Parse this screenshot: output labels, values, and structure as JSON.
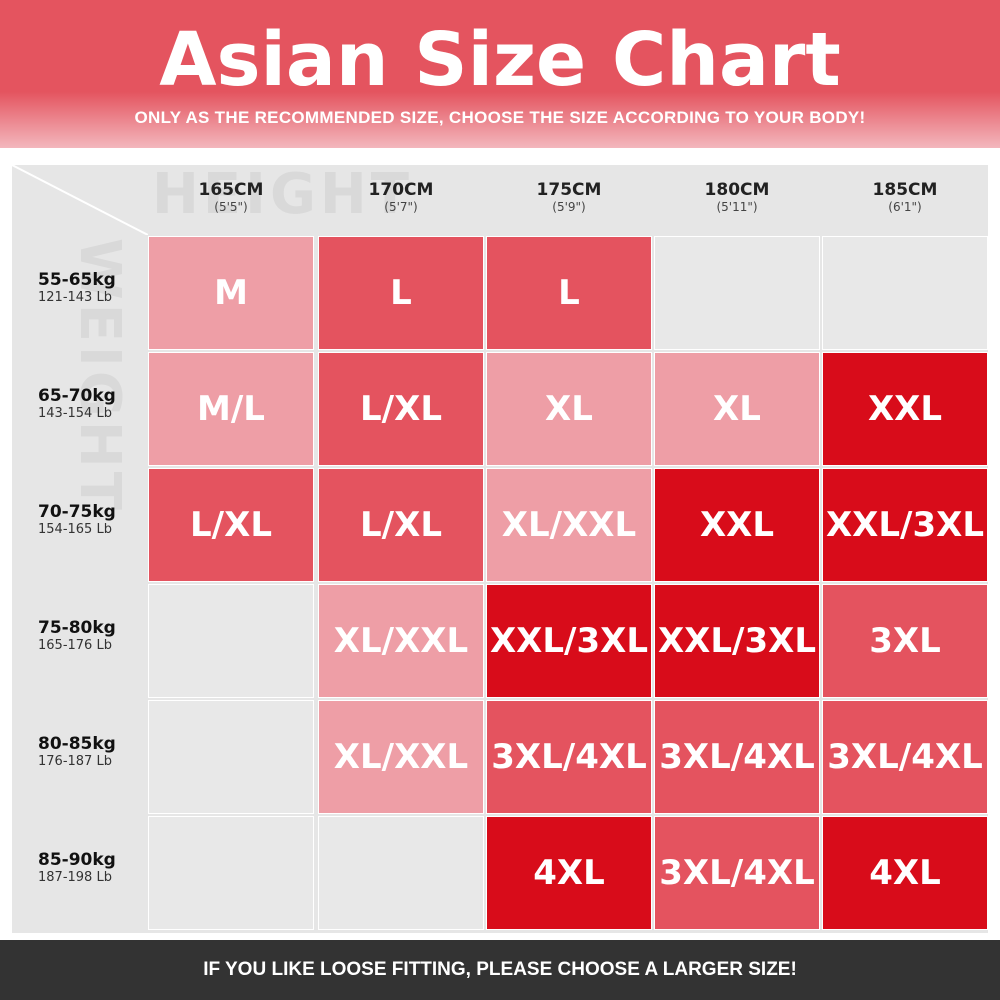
{
  "header": {
    "title": "Asian Size Chart",
    "subtitle": "ONLY AS THE RECOMMENDED SIZE, CHOOSE THE SIZE ACCORDING TO YOUR BODY!"
  },
  "watermarks": {
    "height": "HEIGHT",
    "weight": "WEIGHT"
  },
  "table": {
    "columns": [
      {
        "height": "165CM",
        "alt": "(5'5\")"
      },
      {
        "height": "170CM",
        "alt": "(5'7\")"
      },
      {
        "height": "175CM",
        "alt": "(5'9\")"
      },
      {
        "height": "180CM",
        "alt": "(5'11\")"
      },
      {
        "height": "185CM",
        "alt": "(6'1\")"
      }
    ],
    "rows": [
      {
        "weight": "55-65kg",
        "pounds": "121-143 Lb",
        "cells": [
          {
            "text": "M",
            "color": "#ee9ea6"
          },
          {
            "text": "L",
            "color": "#e4535f"
          },
          {
            "text": "L",
            "color": "#e4535f"
          },
          {
            "text": null,
            "color": "#e8e8e8"
          },
          {
            "text": null,
            "color": "#e8e8e8"
          }
        ]
      },
      {
        "weight": "65-70kg",
        "pounds": "143-154 Lb",
        "cells": [
          {
            "text": "M/L",
            "color": "#ee9ea6"
          },
          {
            "text": "L/XL",
            "color": "#e4535f"
          },
          {
            "text": "XL",
            "color": "#ee9ea6"
          },
          {
            "text": "XL",
            "color": "#ee9ea6"
          },
          {
            "text": "XXL",
            "color": "#d80c1a"
          }
        ]
      },
      {
        "weight": "70-75kg",
        "pounds": "154-165 Lb",
        "cells": [
          {
            "text": "L/XL",
            "color": "#e4535f"
          },
          {
            "text": "L/XL",
            "color": "#e4535f"
          },
          {
            "text": "XL/XXL",
            "color": "#ee9ea6"
          },
          {
            "text": "XXL",
            "color": "#d80c1a"
          },
          {
            "text": "XXL/3XL",
            "color": "#d80c1a"
          }
        ]
      },
      {
        "weight": "75-80kg",
        "pounds": "165-176 Lb",
        "cells": [
          {
            "text": null,
            "color": "#e8e8e8"
          },
          {
            "text": "XL/XXL",
            "color": "#ee9ea6"
          },
          {
            "text": "XXL/3XL",
            "color": "#d80c1a"
          },
          {
            "text": "XXL/3XL",
            "color": "#d80c1a"
          },
          {
            "text": "3XL",
            "color": "#e4535f"
          }
        ]
      },
      {
        "weight": "80-85kg",
        "pounds": "176-187 Lb",
        "cells": [
          {
            "text": null,
            "color": "#e8e8e8"
          },
          {
            "text": "XL/XXL",
            "color": "#ee9ea6"
          },
          {
            "text": "3XL/4XL",
            "color": "#e4535f"
          },
          {
            "text": "3XL/4XL",
            "color": "#e4535f"
          },
          {
            "text": "3XL/4XL",
            "color": "#e4535f"
          }
        ]
      },
      {
        "weight": "85-90kg",
        "pounds": "187-198 Lb",
        "cells": [
          {
            "text": null,
            "color": "#e8e8e8"
          },
          {
            "text": null,
            "color": "#e8e8e8"
          },
          {
            "text": "4XL",
            "color": "#d80c1a"
          },
          {
            "text": "3XL/4XL",
            "color": "#e4535f"
          },
          {
            "text": "4XL",
            "color": "#d80c1a"
          }
        ]
      }
    ]
  },
  "footer": {
    "text": "IF YOU LIKE LOOSE FITTING, PLEASE CHOOSE A LARGER SIZE!"
  }
}
